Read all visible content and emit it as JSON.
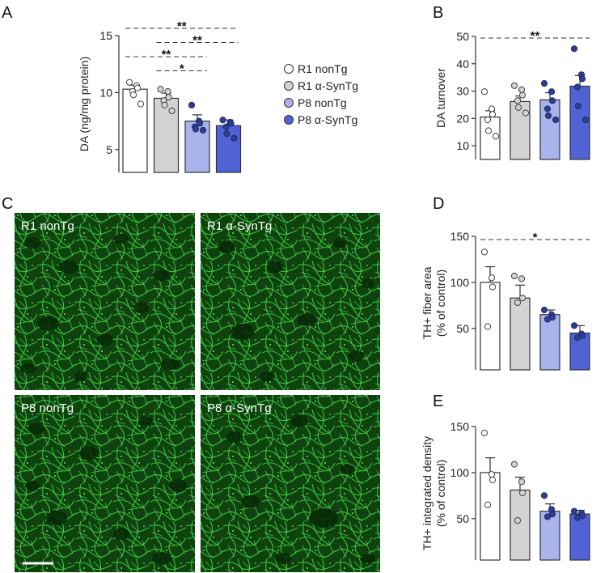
{
  "panel_letters": {
    "A": "A",
    "B": "B",
    "C": "C",
    "D": "D",
    "E": "E"
  },
  "legend": {
    "items": [
      {
        "label": "R1 nonTg",
        "color": "#ffffff"
      },
      {
        "label": "R1 α-SynTg",
        "color": "#d3d3d3"
      },
      {
        "label": "P8 nonTg",
        "color": "#a9b3ec"
      },
      {
        "label": "P8 α-SynTg",
        "color": "#4f63d6"
      }
    ]
  },
  "colors": {
    "R1_nonTg": "#ffffff",
    "R1_aSynTg": "#d3d3d3",
    "P8_nonTg": "#a9b3ec",
    "P8_aSynTg": "#4f63d6",
    "dot_dark": "#2f3f8f",
    "micrograph_bg": "#0d3a0d",
    "fiber": "#3fd83f"
  },
  "micrographs": {
    "labels": [
      "R1 nonTg",
      "R1 α-SynTg",
      "P8 nonTg",
      "P8 α-SynTg"
    ]
  },
  "chart_data": [
    {
      "id": "A",
      "type": "bar",
      "ylabel": "DA (ng/mg protein)",
      "ylim": [
        3,
        15
      ],
      "yticks": [
        5,
        10,
        15
      ],
      "categories": [
        "R1 nonTg",
        "R1 α-SynTg",
        "P8 nonTg",
        "P8 α-SynTg"
      ],
      "values": [
        10.3,
        9.5,
        7.5,
        7.1
      ],
      "errors": [
        0.35,
        0.45,
        0.55,
        0.5
      ],
      "points": [
        [
          10.9,
          10.6,
          10.4,
          10.1,
          9.8,
          9.0
        ],
        [
          10.3,
          10.1,
          9.6,
          9.3,
          8.9,
          8.4
        ],
        [
          8.9,
          7.5,
          7.3,
          7.0,
          6.8,
          6.7
        ],
        [
          7.6,
          7.4,
          7.3,
          7.0,
          6.4,
          6.0
        ]
      ],
      "significance": [
        {
          "from": 0,
          "to": 3,
          "label": "**"
        },
        {
          "from": 1,
          "to": 3,
          "label": "**"
        },
        {
          "from": 0,
          "to": 2,
          "label": "**"
        },
        {
          "from": 1,
          "to": 2,
          "label": "*"
        }
      ]
    },
    {
      "id": "B",
      "type": "bar",
      "ylabel": "DA turnover",
      "ylim": [
        5,
        50
      ],
      "yticks": [
        10,
        20,
        30,
        40,
        50
      ],
      "categories": [
        "R1 nonTg",
        "R1 α-SynTg",
        "P8 nonTg",
        "P8 α-SynTg"
      ],
      "values": [
        20.5,
        26.2,
        26.8,
        31.8
      ],
      "errors": [
        2.3,
        2.0,
        2.6,
        3.9
      ],
      "points": [
        [
          29.8,
          23.5,
          21.5,
          19.5,
          15.5,
          13.5
        ],
        [
          32.0,
          30.5,
          28.5,
          26.5,
          24.0,
          22.0
        ],
        [
          32.8,
          29.8,
          26.5,
          23.5,
          21.0,
          19.5
        ],
        [
          45.5,
          36.0,
          34.5,
          31.5,
          24.5,
          19.5
        ]
      ],
      "significance": [
        {
          "from": 0,
          "to": 3,
          "label": "**"
        }
      ]
    },
    {
      "id": "D",
      "type": "bar",
      "ylabel": "TH+ fiber area\n(% of control)",
      "ylim": [
        5,
        150
      ],
      "yticks": [
        50,
        100,
        150
      ],
      "categories": [
        "R1 nonTg",
        "R1 α-SynTg",
        "P8 nonTg",
        "P8 α-SynTg"
      ],
      "values": [
        100,
        83,
        65,
        45
      ],
      "errors": [
        17,
        14,
        5,
        8
      ],
      "points": [
        [
          133,
          105,
          95,
          52
        ],
        [
          107,
          104,
          83,
          78
        ],
        [
          70,
          65,
          62,
          60
        ],
        [
          53,
          44,
          42,
          40
        ]
      ],
      "significance": [
        {
          "from": 0,
          "to": 3,
          "label": "*"
        }
      ]
    },
    {
      "id": "E",
      "type": "bar",
      "ylabel": "TH+ integrated density\n(% of control)",
      "ylim": [
        5,
        150
      ],
      "yticks": [
        50,
        100,
        150
      ],
      "categories": [
        "R1 nonTg",
        "R1 α-SynTg",
        "P8 nonTg",
        "P8 α-SynTg"
      ],
      "values": [
        100,
        81,
        58,
        55
      ],
      "errors": [
        16,
        14,
        8,
        4
      ],
      "points": [
        [
          143,
          98,
          92,
          65
        ],
        [
          109,
          90,
          78,
          48
        ],
        [
          75,
          60,
          55,
          52
        ],
        [
          58,
          56,
          53,
          51
        ]
      ],
      "significance": []
    }
  ]
}
